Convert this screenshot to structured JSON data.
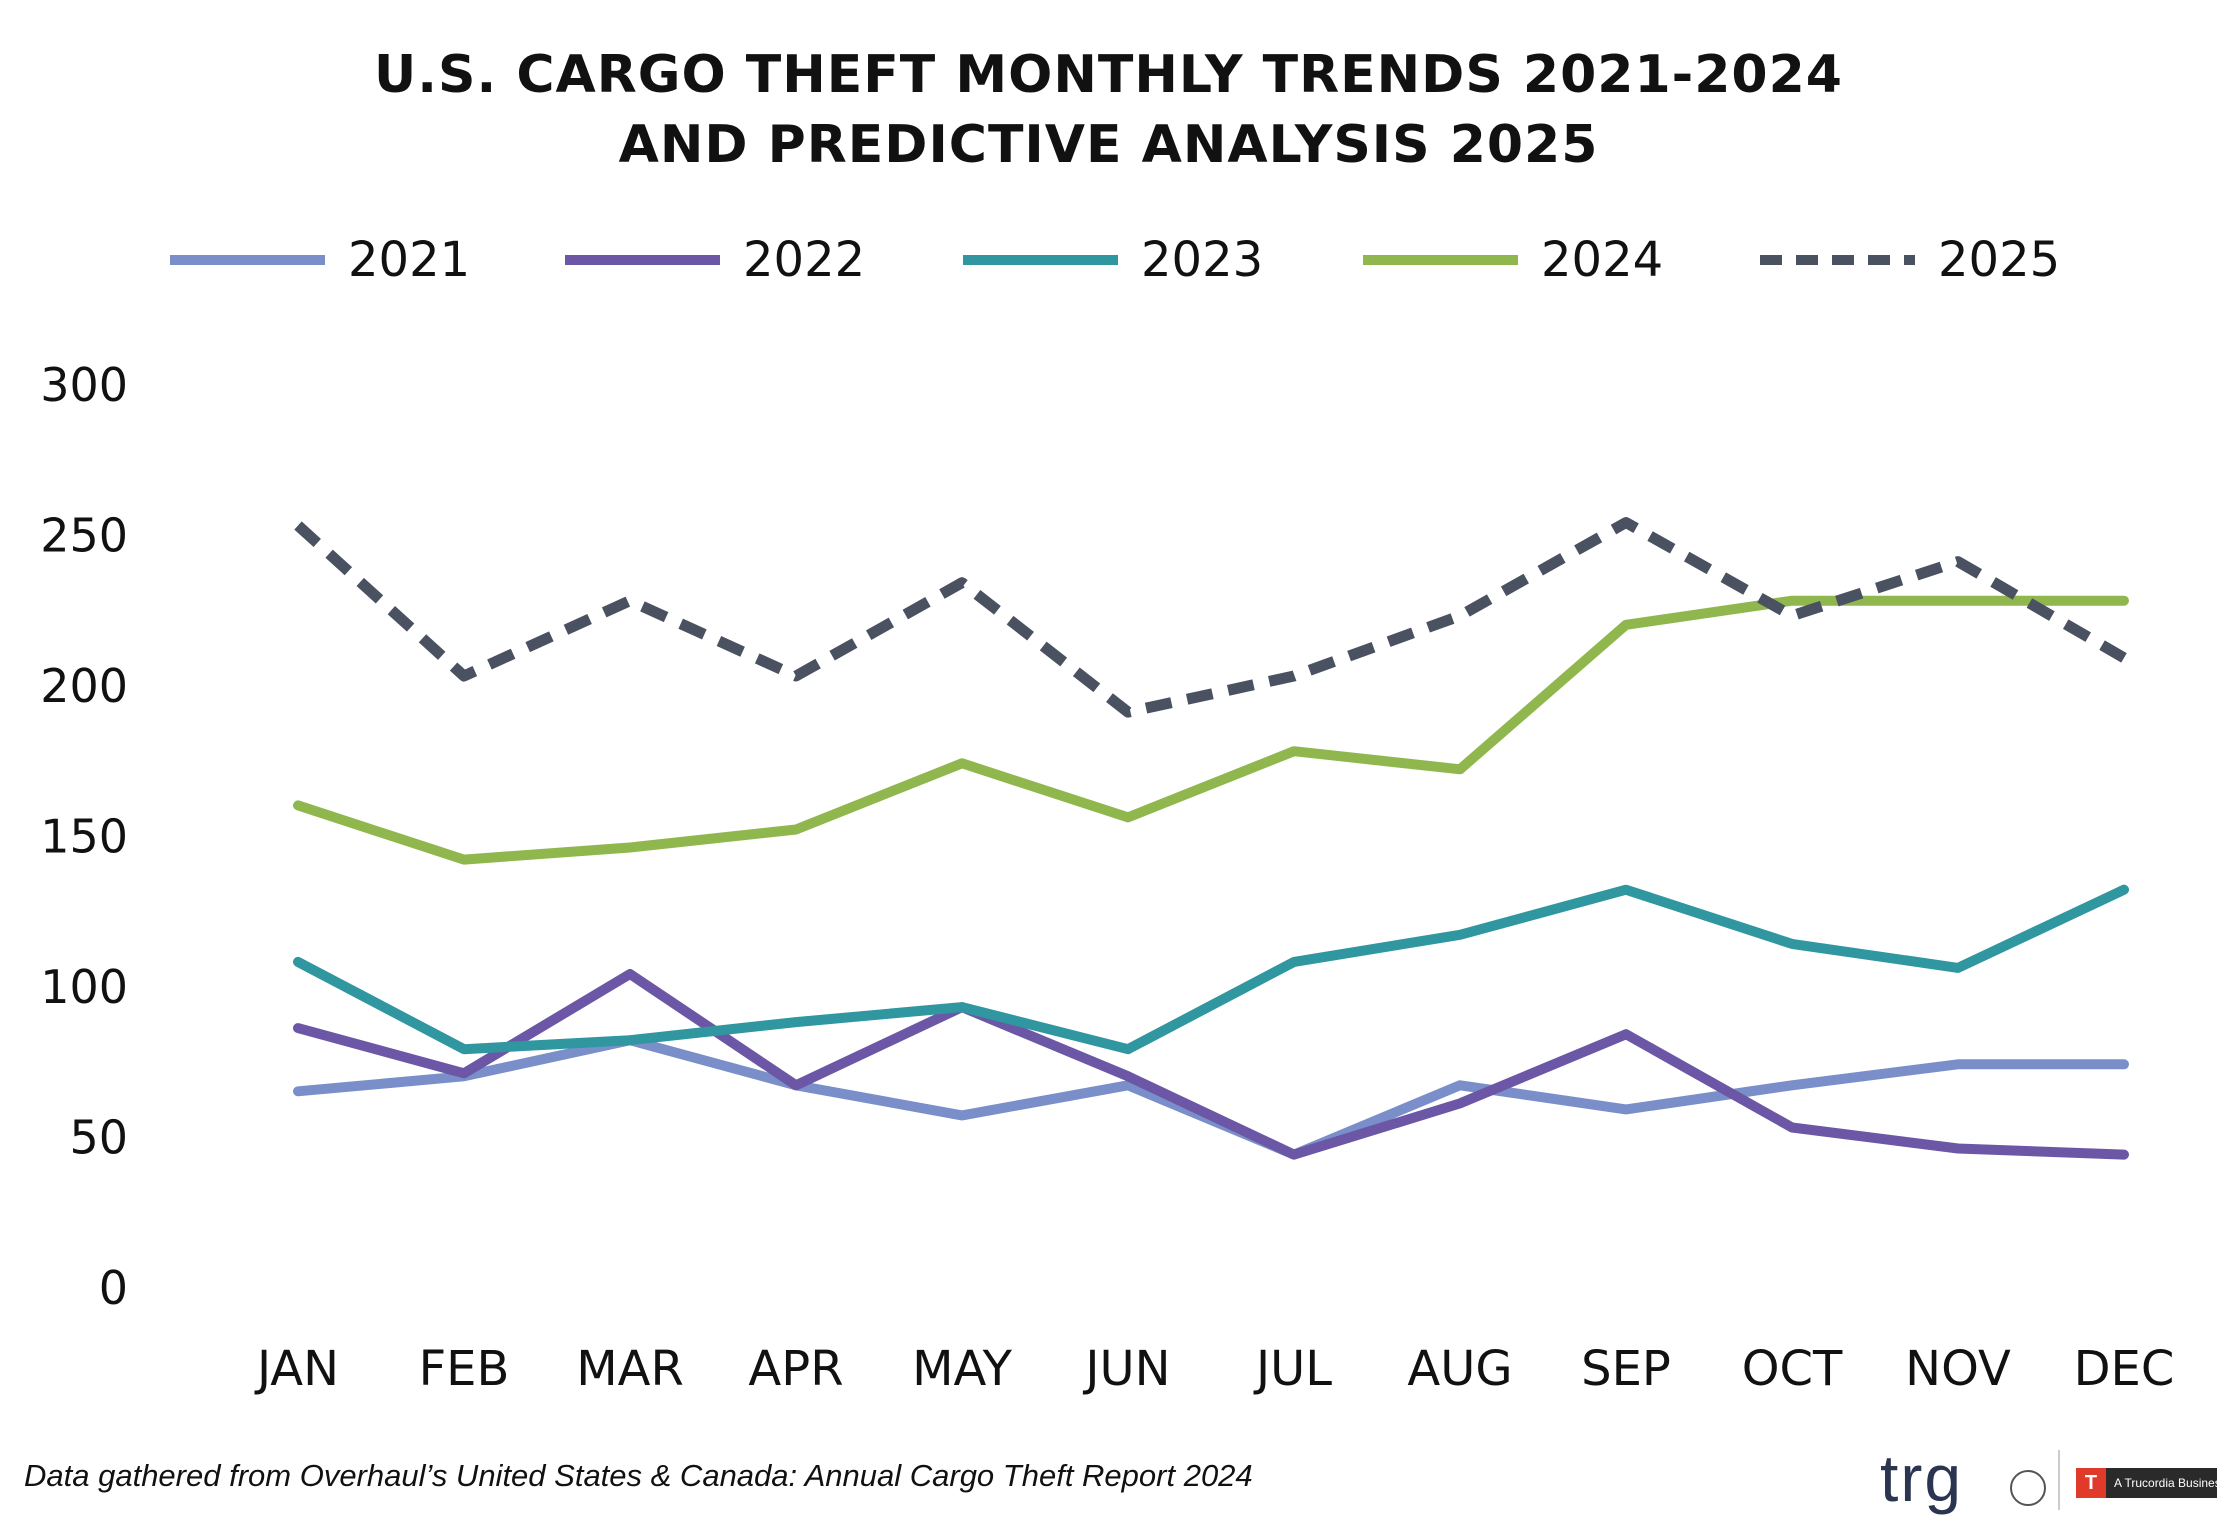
{
  "chart_data": {
    "type": "line",
    "title_line1": "U.S. CARGO THEFT MONTHLY TRENDS 2021-2024",
    "title_line2": "AND PREDICTIVE ANALYSIS 2025",
    "categories": [
      "JAN",
      "FEB",
      "MAR",
      "APR",
      "MAY",
      "JUN",
      "JUL",
      "AUG",
      "SEP",
      "OCT",
      "NOV",
      "DEC"
    ],
    "y_ticks": [
      "0",
      "50",
      "100",
      "150",
      "200",
      "250",
      "300"
    ],
    "ylim": [
      0,
      300
    ],
    "grid": false,
    "legend_position": "top",
    "series": [
      {
        "name": "2021",
        "color": "#7a8fc9",
        "dashed": false,
        "values": [
          65,
          70,
          82,
          67,
          57,
          67,
          44,
          67,
          59,
          67,
          74,
          74
        ]
      },
      {
        "name": "2022",
        "color": "#6b57a5",
        "dashed": false,
        "values": [
          86,
          71,
          104,
          67,
          93,
          70,
          44,
          61,
          84,
          53,
          46,
          44
        ]
      },
      {
        "name": "2023",
        "color": "#3096a0",
        "dashed": false,
        "values": [
          108,
          79,
          82,
          88,
          93,
          79,
          108,
          117,
          132,
          114,
          106,
          132
        ]
      },
      {
        "name": "2024",
        "color": "#90b74e",
        "dashed": false,
        "values": [
          160,
          142,
          146,
          152,
          174,
          156,
          178,
          172,
          220,
          228,
          228,
          228
        ]
      },
      {
        "name": "2025",
        "color": "#4a5160",
        "dashed": true,
        "values": [
          253,
          203,
          228,
          203,
          234,
          191,
          203,
          223,
          254,
          223,
          241,
          209
        ]
      }
    ]
  },
  "footer": {
    "source_note": "Data gathered from Overhaul’s United States & Canada: Annual Cargo Theft Report 2024"
  },
  "logo": {
    "wordmark": "trg",
    "badge_mark": "T",
    "badge_text": "A Trucordia Business"
  }
}
